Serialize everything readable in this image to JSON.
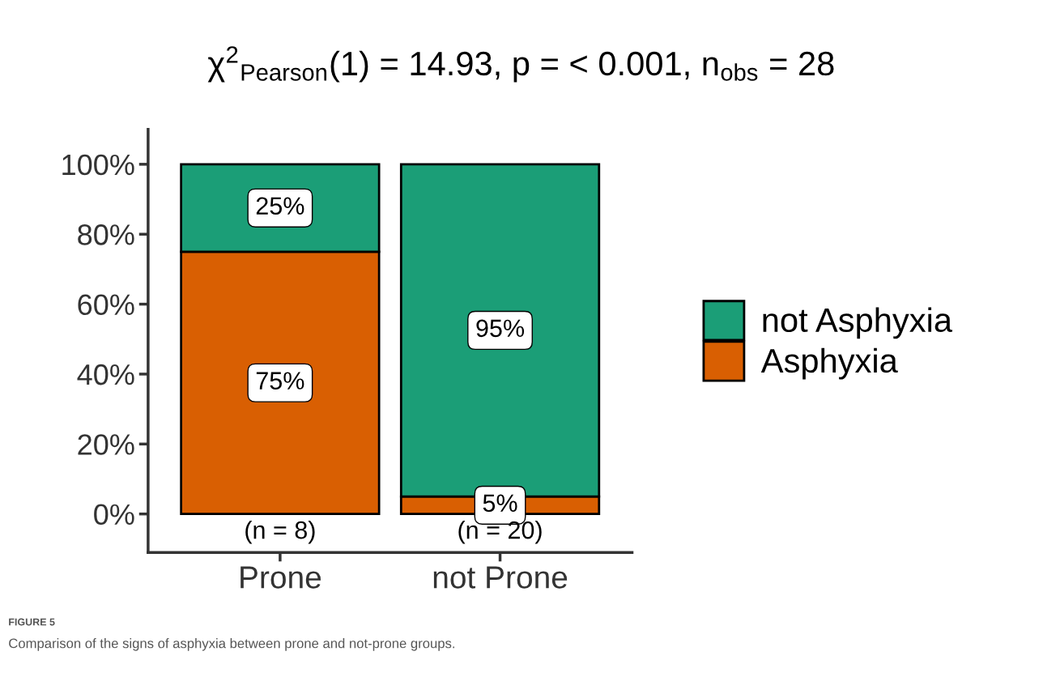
{
  "chart_data": {
    "type": "bar",
    "stacked": true,
    "title": "χ$^{2}$$_{Pearson}$(1) = 14.93, p = < 0.001, n$_{obs}$ = 28",
    "categories": [
      "Prone",
      "not Prone"
    ],
    "series": [
      {
        "name": "Asphyxia",
        "color": "#d95f02",
        "values": [
          75,
          5
        ],
        "value_labels": [
          "75%",
          "5%"
        ]
      },
      {
        "name": "not Asphyxia",
        "color": "#1b9e77",
        "values": [
          25,
          95
        ],
        "value_labels": [
          "25%",
          "95%"
        ]
      }
    ],
    "ylim": [
      -11,
      110
    ],
    "yticks": [
      {
        "value": 0,
        "label": "0%"
      },
      {
        "value": 20,
        "label": "20%"
      },
      {
        "value": 40,
        "label": "40%"
      },
      {
        "value": 60,
        "label": "60%"
      },
      {
        "value": 80,
        "label": "80%"
      },
      {
        "value": 100,
        "label": "100%"
      }
    ],
    "annotations": [
      "(n = 8)",
      "(n = 20)",
      "FIGURE 5",
      "Comparison of the signs of asphyxia between prone and not-prone groups."
    ],
    "legend": "right",
    "grid": false
  }
}
